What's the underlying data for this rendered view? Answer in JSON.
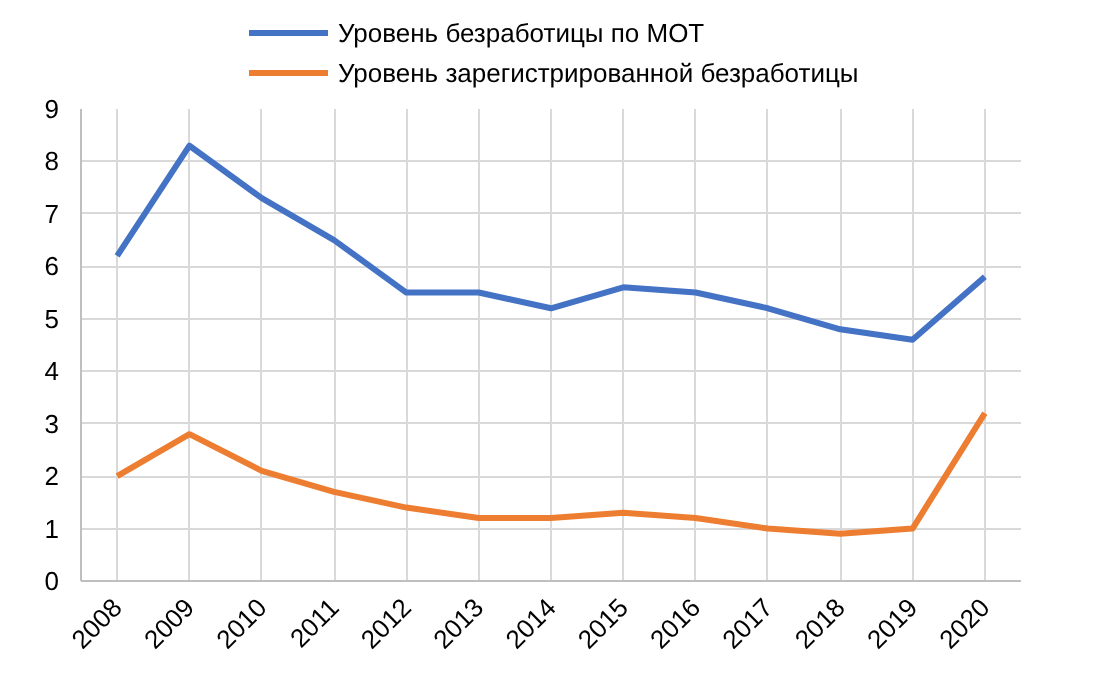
{
  "chart_data": {
    "type": "line",
    "categories": [
      "2008",
      "2009",
      "2010",
      "2011",
      "2012",
      "2013",
      "2014",
      "2015",
      "2016",
      "2017",
      "2018",
      "2019",
      "2020"
    ],
    "series": [
      {
        "name": "Уровень безработицы по МОТ",
        "color": "#4472c4",
        "values": [
          6.2,
          8.3,
          7.3,
          6.5,
          5.5,
          5.5,
          5.2,
          5.6,
          5.5,
          5.2,
          4.8,
          4.6,
          5.8
        ]
      },
      {
        "name": "Уровень зарегистрированной безработицы",
        "color": "#ed7d31",
        "values": [
          2.0,
          2.8,
          2.1,
          1.7,
          1.4,
          1.2,
          1.2,
          1.3,
          1.2,
          1.0,
          0.9,
          1.0,
          3.2
        ]
      }
    ],
    "ylim": [
      0,
      9
    ],
    "yticks": [
      0,
      1,
      2,
      3,
      4,
      5,
      6,
      7,
      8,
      9
    ],
    "grid": true,
    "legend": "top",
    "marker": "none",
    "line_style": "solid"
  }
}
